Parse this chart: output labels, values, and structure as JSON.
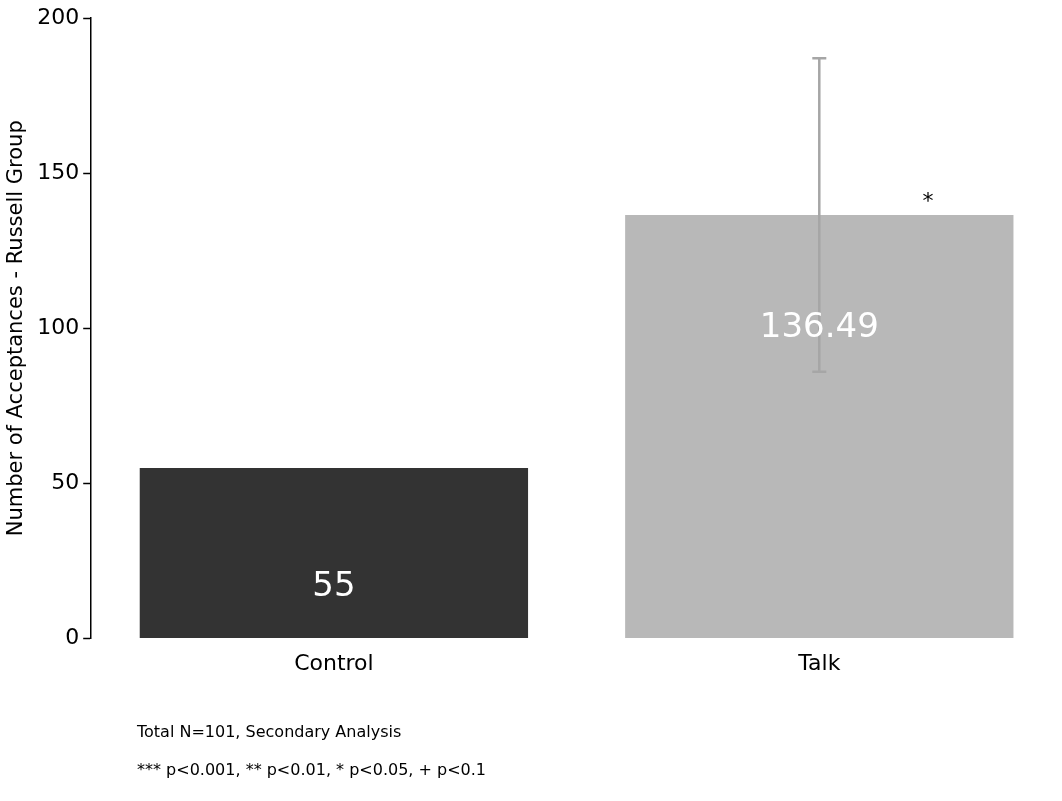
{
  "chart_data": {
    "type": "bar",
    "ylabel": "Number of Acceptances - Russell Group",
    "categories": [
      "Control",
      "Talk"
    ],
    "values": [
      55,
      136.49
    ],
    "colors": [
      "#333333",
      "#b8b8b8"
    ],
    "errors": [
      null,
      [
        86,
        187
      ]
    ],
    "data_labels": true,
    "ylim": [
      0,
      200
    ],
    "yticks": [
      0,
      50,
      100,
      150,
      200
    ],
    "grid": false,
    "legend": false,
    "annotations": [
      "*",
      "Total N=101, Secondary Analysis",
      "*** p<0.001, ** p<0.01, * p<0.05, + p<0.1"
    ]
  }
}
